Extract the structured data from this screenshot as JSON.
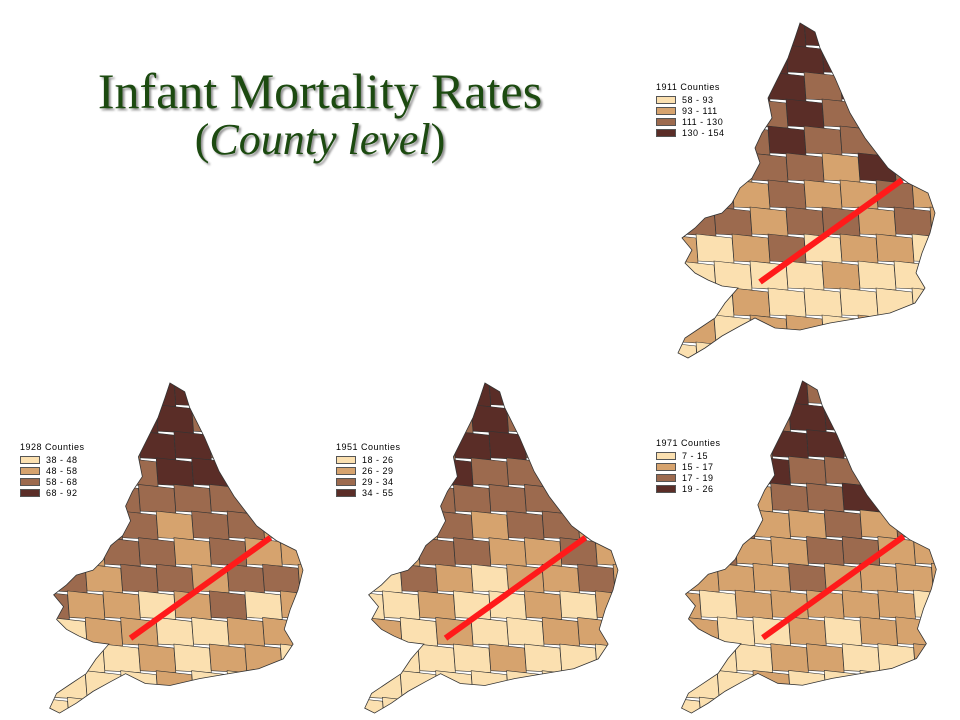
{
  "title": {
    "line1": "Infant Mortality Rates",
    "line2_open": "(",
    "line2_italic": "County level",
    "line2_close": ")"
  },
  "colors": {
    "class1": "#fbe0b0",
    "class2": "#d6a36e",
    "class3": "#9c6a4e",
    "class4": "#5a2d27",
    "divide_line": "#ff1a1a",
    "title": "#1c4a10"
  },
  "maps": [
    {
      "id": "1911",
      "legend_title": "1911 Counties",
      "classes": [
        "58 - 93",
        "93 - 111",
        "111 - 130",
        "130 - 154"
      ]
    },
    {
      "id": "1928",
      "legend_title": "1928 Counties",
      "classes": [
        "38 - 48",
        "48 - 58",
        "58 - 68",
        "68 - 92"
      ]
    },
    {
      "id": "1951",
      "legend_title": "1951 Counties",
      "classes": [
        "18 - 26",
        "26 - 29",
        "29 - 34",
        "34 - 55"
      ]
    },
    {
      "id": "1971",
      "legend_title": "1971 Counties",
      "classes": [
        "7 - 15",
        "15 - 17",
        "17 - 19",
        "19 - 26"
      ]
    }
  ]
}
